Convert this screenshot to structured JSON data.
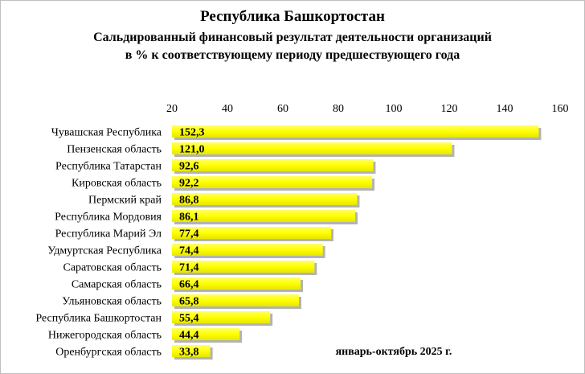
{
  "chart_data": {
    "type": "bar",
    "orientation": "horizontal",
    "title": "Республика Башкортостан",
    "subtitle_line1": "Сальдированный финансовый результат деятельности организаций",
    "subtitle_line2": "в % к соответствующему периоду предшествующего года",
    "annotation": "январь-октябрь 2025 г.",
    "xlim": [
      20,
      160
    ],
    "x_ticks": [
      "20",
      "40",
      "60",
      "80",
      "100",
      "120",
      "140",
      "160"
    ],
    "x_axis_position": "top",
    "grid": false,
    "bar_color": "#ffff00",
    "categories": [
      "Чувашская Республика",
      "Пензенская область",
      "Республика Татарстан",
      "Кировская область",
      "Пермский край",
      "Республика Мордовия",
      "Республика Марий Эл",
      "Удмуртская Республика",
      "Саратовская область",
      "Самарская область",
      "Ульяновская область",
      "Республика Башкортостан",
      "Нижегородская область",
      "Оренбургская область"
    ],
    "values": [
      152.3,
      121.0,
      92.6,
      92.2,
      86.8,
      86.1,
      77.4,
      74.4,
      71.4,
      66.4,
      65.8,
      55.4,
      44.4,
      33.8
    ],
    "value_labels": [
      "152,3",
      "121,0",
      "92,6",
      "92,2",
      "86,8",
      "86,1",
      "77,4",
      "74,4",
      "71,4",
      "66,4",
      "65,8",
      "55,4",
      "44,4",
      "33,8"
    ]
  }
}
